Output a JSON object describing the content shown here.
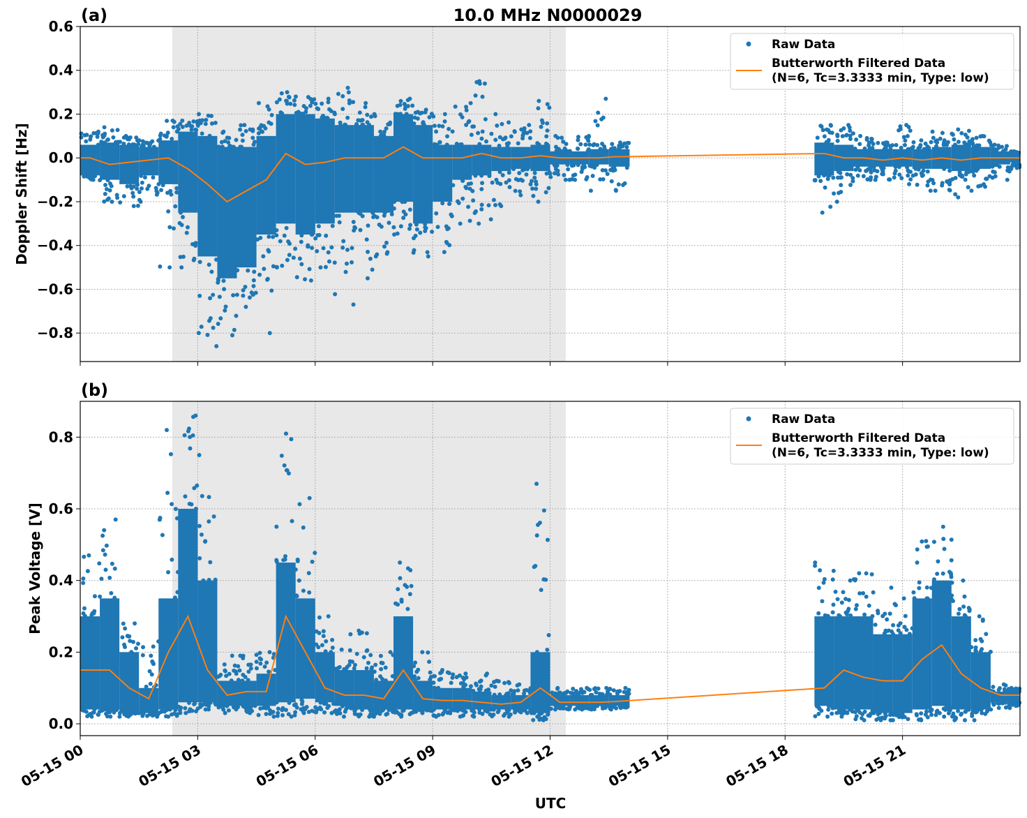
{
  "title": "10.0 MHz N0000029",
  "colors": {
    "raw": "#1f77b4",
    "filtered": "#ff7f0e",
    "shade": "#e8e8e8",
    "grid": "#b0b0b0"
  },
  "chart_data": [
    {
      "type": "scatter",
      "panel_label": "(a)",
      "ylabel": "Doppler Shift [Hz]",
      "xlabel": "",
      "ylim": [
        -0.93,
        0.6
      ],
      "yticks": [
        0.6,
        0.4,
        0.2,
        0.0,
        -0.2,
        -0.4,
        -0.6,
        -0.8
      ],
      "ytick_labels": [
        "0.6",
        "0.4",
        "0.2",
        "0.0",
        "−0.2",
        "−0.4",
        "−0.6",
        "−0.8"
      ],
      "grid": true,
      "legend_placement": "top-right",
      "legend": [
        "Raw Data",
        "Butterworth Filtered Data",
        "(N=6, Tc=3.3333 min, Type: low)"
      ],
      "shaded_interval_hours_utc": [
        2.35,
        12.4
      ],
      "bin_columns": [
        "start_hour",
        "raw_min",
        "raw_core_low",
        "raw_core_high",
        "raw_max",
        "filtered"
      ],
      "bins": [
        [
          0,
          -0.1,
          -0.08,
          0.06,
          0.12,
          0.0
        ],
        [
          0.5,
          -0.2,
          -0.1,
          0.07,
          0.14,
          -0.03
        ],
        [
          1.0,
          -0.22,
          -0.12,
          0.06,
          0.1,
          -0.02
        ],
        [
          1.5,
          -0.2,
          -0.08,
          0.05,
          0.08,
          -0.01
        ],
        [
          2.0,
          -0.5,
          -0.12,
          0.08,
          0.17,
          0.0
        ],
        [
          2.5,
          -0.5,
          -0.25,
          0.12,
          0.17,
          -0.05
        ],
        [
          3.0,
          -0.86,
          -0.45,
          0.1,
          0.2,
          -0.12
        ],
        [
          3.5,
          -0.81,
          -0.55,
          0.05,
          0.12,
          -0.2
        ],
        [
          4.0,
          -0.68,
          -0.5,
          0.05,
          0.15,
          -0.15
        ],
        [
          4.5,
          -0.8,
          -0.35,
          0.1,
          0.25,
          -0.1
        ],
        [
          5.0,
          -0.5,
          -0.3,
          0.2,
          0.3,
          0.02
        ],
        [
          5.5,
          -0.56,
          -0.35,
          0.2,
          0.28,
          -0.03
        ],
        [
          6.0,
          -0.5,
          -0.3,
          0.18,
          0.27,
          -0.02
        ],
        [
          6.5,
          -0.67,
          -0.25,
          0.15,
          0.32,
          0.0
        ],
        [
          7.0,
          -0.55,
          -0.25,
          0.15,
          0.25,
          0.0
        ],
        [
          7.5,
          -0.45,
          -0.25,
          0.1,
          0.2,
          0.0
        ],
        [
          8.0,
          -0.35,
          -0.2,
          0.2,
          0.27,
          0.05
        ],
        [
          8.5,
          -0.45,
          -0.3,
          0.15,
          0.22,
          0.0
        ],
        [
          9.0,
          -0.43,
          -0.2,
          0.06,
          0.2,
          0.0
        ],
        [
          9.5,
          -0.3,
          -0.1,
          0.06,
          0.25,
          0.0
        ],
        [
          10.0,
          -0.3,
          -0.08,
          0.06,
          0.35,
          0.02
        ],
        [
          10.5,
          -0.22,
          -0.06,
          0.05,
          0.2,
          0.0
        ],
        [
          11.0,
          -0.17,
          -0.05,
          0.05,
          0.15,
          0.0
        ],
        [
          11.5,
          -0.2,
          -0.06,
          0.06,
          0.26,
          0.01
        ],
        [
          12.0,
          -0.1,
          -0.03,
          0.03,
          0.1,
          0.0
        ],
        [
          12.5,
          -0.1,
          -0.03,
          0.03,
          0.1,
          0.0
        ],
        [
          13.0,
          -0.15,
          -0.03,
          0.04,
          0.27,
          0.0
        ],
        [
          13.5,
          -0.15,
          -0.04,
          0.04,
          0.07,
          0.005
        ],
        [
          18.75,
          -0.25,
          -0.08,
          0.07,
          0.15,
          0.02
        ],
        [
          19.25,
          -0.2,
          -0.06,
          0.06,
          0.15,
          0.0
        ],
        [
          19.75,
          -0.1,
          -0.04,
          0.04,
          0.1,
          0.0
        ],
        [
          20.25,
          -0.1,
          -0.04,
          0.04,
          0.07,
          -0.01
        ],
        [
          20.75,
          -0.12,
          -0.04,
          0.04,
          0.15,
          0.0
        ],
        [
          21.25,
          -0.15,
          -0.05,
          0.04,
          0.08,
          -0.01
        ],
        [
          21.75,
          -0.15,
          -0.05,
          0.05,
          0.12,
          0.0
        ],
        [
          22.25,
          -0.18,
          -0.06,
          0.06,
          0.13,
          -0.01
        ],
        [
          22.75,
          -0.15,
          -0.05,
          0.05,
          0.1,
          0.0
        ],
        [
          23.25,
          -0.1,
          -0.03,
          0.03,
          0.06,
          0.0
        ],
        [
          23.75,
          -0.05,
          -0.02,
          0.02,
          0.03,
          0.0
        ]
      ]
    },
    {
      "type": "scatter",
      "panel_label": "(b)",
      "ylabel": "Peak Voltage [V]",
      "xlabel": "UTC",
      "ylim": [
        -0.033,
        0.9
      ],
      "yticks": [
        0.8,
        0.6,
        0.4,
        0.2,
        0.0
      ],
      "ytick_labels": [
        "0.8",
        "0.6",
        "0.4",
        "0.2",
        "0.0"
      ],
      "grid": true,
      "legend_placement": "top-right",
      "legend": [
        "Raw Data",
        "Butterworth Filtered Data",
        "(N=6, Tc=3.3333 min, Type: low)"
      ],
      "shaded_interval_hours_utc": [
        2.35,
        12.4
      ],
      "bin_columns": [
        "start_hour",
        "raw_min",
        "raw_core_low",
        "raw_core_high",
        "raw_max",
        "filtered"
      ],
      "bins": [
        [
          0,
          0.02,
          0.04,
          0.3,
          0.47,
          0.15
        ],
        [
          0.5,
          0.02,
          0.04,
          0.35,
          0.57,
          0.15
        ],
        [
          1.0,
          0.02,
          0.03,
          0.2,
          0.28,
          0.1
        ],
        [
          1.5,
          0.02,
          0.03,
          0.1,
          0.23,
          0.07
        ],
        [
          2.0,
          0.02,
          0.04,
          0.35,
          0.82,
          0.2
        ],
        [
          2.5,
          0.03,
          0.06,
          0.6,
          0.86,
          0.3
        ],
        [
          3.0,
          0.04,
          0.06,
          0.4,
          0.75,
          0.15
        ],
        [
          3.5,
          0.03,
          0.05,
          0.12,
          0.19,
          0.08
        ],
        [
          4.0,
          0.03,
          0.05,
          0.12,
          0.19,
          0.09
        ],
        [
          4.5,
          0.02,
          0.05,
          0.14,
          0.2,
          0.09
        ],
        [
          5.0,
          0.02,
          0.06,
          0.45,
          0.81,
          0.3
        ],
        [
          5.5,
          0.03,
          0.07,
          0.35,
          0.63,
          0.2
        ],
        [
          6.0,
          0.03,
          0.06,
          0.2,
          0.3,
          0.1
        ],
        [
          6.5,
          0.02,
          0.05,
          0.15,
          0.25,
          0.08
        ],
        [
          7.0,
          0.02,
          0.04,
          0.15,
          0.26,
          0.08
        ],
        [
          7.5,
          0.02,
          0.04,
          0.12,
          0.2,
          0.07
        ],
        [
          8.0,
          0.02,
          0.04,
          0.3,
          0.45,
          0.15
        ],
        [
          8.5,
          0.03,
          0.04,
          0.12,
          0.2,
          0.07
        ],
        [
          9.0,
          0.02,
          0.04,
          0.1,
          0.15,
          0.065
        ],
        [
          9.5,
          0.02,
          0.04,
          0.1,
          0.14,
          0.065
        ],
        [
          10.0,
          0.02,
          0.04,
          0.09,
          0.14,
          0.06
        ],
        [
          10.5,
          0.02,
          0.04,
          0.08,
          0.12,
          0.055
        ],
        [
          11.0,
          0.03,
          0.04,
          0.08,
          0.11,
          0.06
        ],
        [
          11.5,
          0.01,
          0.03,
          0.2,
          0.67,
          0.1
        ],
        [
          12.0,
          0.04,
          0.05,
          0.08,
          0.1,
          0.06
        ],
        [
          12.5,
          0.04,
          0.05,
          0.08,
          0.1,
          0.06
        ],
        [
          13.0,
          0.04,
          0.05,
          0.08,
          0.1,
          0.06
        ],
        [
          13.5,
          0.04,
          0.05,
          0.08,
          0.1,
          0.062
        ],
        [
          18.75,
          0.02,
          0.05,
          0.3,
          0.45,
          0.1
        ],
        [
          19.25,
          0.02,
          0.04,
          0.3,
          0.4,
          0.15
        ],
        [
          19.75,
          0.01,
          0.04,
          0.3,
          0.42,
          0.13
        ],
        [
          20.25,
          0.01,
          0.03,
          0.25,
          0.38,
          0.12
        ],
        [
          20.75,
          0.01,
          0.03,
          0.25,
          0.35,
          0.12
        ],
        [
          21.25,
          0.01,
          0.04,
          0.35,
          0.51,
          0.18
        ],
        [
          21.75,
          0.02,
          0.05,
          0.4,
          0.55,
          0.22
        ],
        [
          22.25,
          0.01,
          0.04,
          0.3,
          0.4,
          0.14
        ],
        [
          22.75,
          0.01,
          0.04,
          0.2,
          0.3,
          0.1
        ],
        [
          23.25,
          0.04,
          0.06,
          0.09,
          0.11,
          0.08
        ],
        [
          23.75,
          0.05,
          0.06,
          0.09,
          0.1,
          0.08
        ]
      ]
    }
  ],
  "x_axis": {
    "range_hours_utc": [
      0,
      24
    ],
    "ticks_hours": [
      0,
      3,
      6,
      9,
      12,
      15,
      18,
      21
    ],
    "tick_labels": [
      "05-15 00",
      "05-15 03",
      "05-15 06",
      "05-15 09",
      "05-15 12",
      "05-15 15",
      "05-15 18",
      "05-15 21"
    ],
    "label": "UTC"
  }
}
